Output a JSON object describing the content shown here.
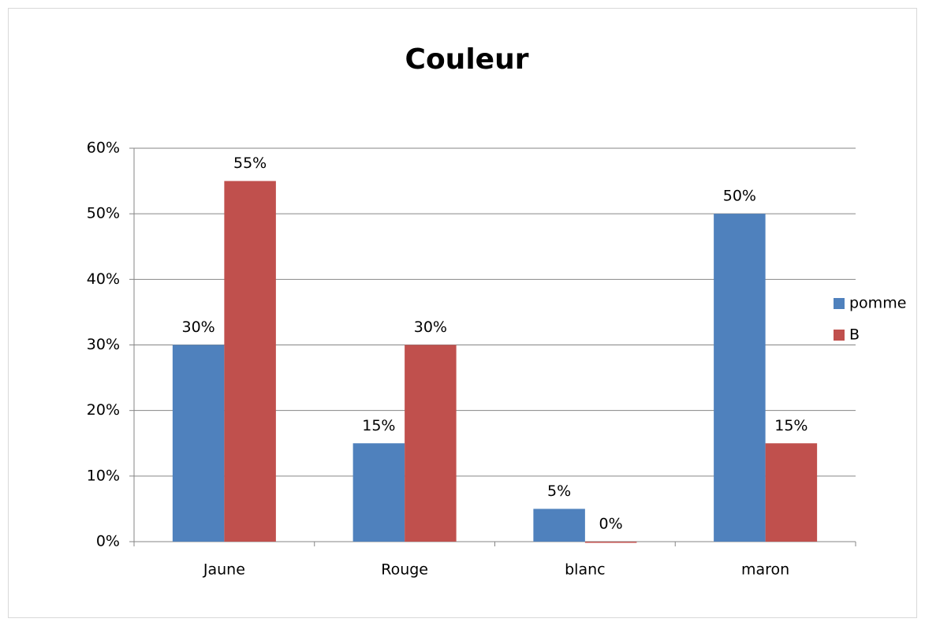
{
  "chart_data": {
    "type": "bar",
    "title": "Couleur",
    "categories": [
      "Jaune",
      "Rouge",
      "blanc",
      "maron"
    ],
    "series": [
      {
        "name": "pomme",
        "color": "#4f81bd",
        "values": [
          30,
          15,
          5,
          50
        ],
        "value_labels": [
          "30%",
          "15%",
          "5%",
          "50%"
        ]
      },
      {
        "name": "B",
        "color": "#c0504d",
        "values": [
          55,
          30,
          0,
          15
        ],
        "value_labels": [
          "55%",
          "30%",
          "0%",
          "15%"
        ]
      }
    ],
    "ylim": [
      0,
      60
    ],
    "yticks": [
      {
        "value": 0,
        "label": "0%"
      },
      {
        "value": 10,
        "label": "10%"
      },
      {
        "value": 20,
        "label": "20%"
      },
      {
        "value": 30,
        "label": "30%"
      },
      {
        "value": 40,
        "label": "40%"
      },
      {
        "value": 50,
        "label": "50%"
      },
      {
        "value": 60,
        "label": "60%"
      }
    ],
    "grid": true,
    "legend": "right"
  }
}
